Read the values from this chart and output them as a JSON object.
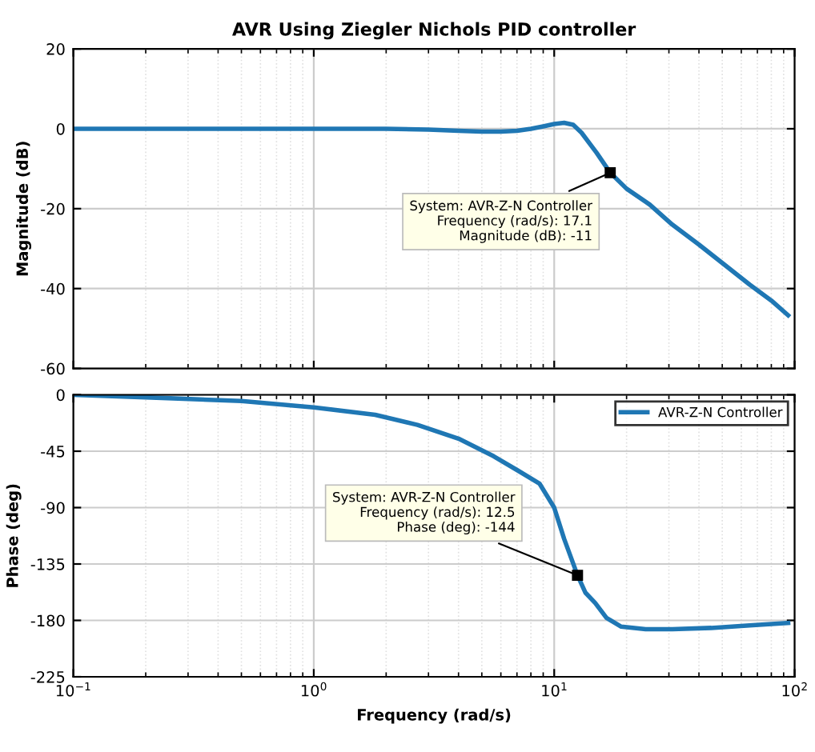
{
  "chart_data": [
    {
      "type": "line",
      "title": "AVR Using Ziegler Nichols PID controller",
      "ylabel": "Magnitude (dB)",
      "log": "x",
      "grid": true,
      "legend": false,
      "tick_labels": "y",
      "line_style": "solid",
      "marker": "none",
      "xlim": [
        0.1,
        100
      ],
      "xticks": [
        {
          "value": 0.1,
          "label": null
        },
        {
          "value": 1,
          "label": null
        },
        {
          "value": 10,
          "label": null
        },
        {
          "value": 100,
          "label": null
        }
      ],
      "ylim": [
        -60,
        20
      ],
      "yticks": [
        -60,
        -40,
        -20,
        0,
        20
      ],
      "series": [
        {
          "color": "#1f77b4",
          "x": [
            0.1,
            0.3,
            1,
            2,
            3,
            4,
            5,
            6,
            7,
            8,
            9,
            10,
            11,
            12,
            13,
            15,
            17.1,
            20,
            25,
            31,
            40,
            51,
            65,
            80,
            94
          ],
          "values": [
            0,
            0,
            0,
            0,
            -0.2,
            -0.5,
            -0.7,
            -0.7,
            -0.5,
            0,
            0.6,
            1.2,
            1.5,
            1,
            -1,
            -6,
            -11,
            -15,
            -19,
            -24,
            -29,
            -34,
            -39,
            -43,
            -46.7
          ]
        }
      ],
      "annotations": [
        {
          "text": "System: AVR-Z-N Controller\nFrequency (rad/s): 17.1\nMagnitude (dB): -11",
          "x": 17.1,
          "y": -11
        }
      ]
    },
    {
      "type": "line",
      "xlabel": "Frequency (rad/s)",
      "ylabel": "Phase (deg)",
      "log": "x",
      "grid": true,
      "legend": "top right",
      "line_style": "solid",
      "marker": "none",
      "xlim": [
        0.1,
        100
      ],
      "xticks": [
        {
          "value": 0.1,
          "label": "10$^{−1}$"
        },
        {
          "value": 1,
          "label": "10$^{0}$"
        },
        {
          "value": 10,
          "label": "10$^{1}$"
        },
        {
          "value": 100,
          "label": "10$^{2}$"
        }
      ],
      "ylim": [
        -225,
        0
      ],
      "yticks": [
        -225,
        -180,
        -135,
        -90,
        -45,
        0
      ],
      "series": [
        {
          "name": "AVR-Z-N Controller",
          "color": "#1f77b4",
          "x": [
            0.1,
            0.2,
            0.5,
            1,
            1.8,
            2.7,
            4,
            5.6,
            7,
            8.7,
            10,
            11,
            12.5,
            13.5,
            14.8,
            16.5,
            19,
            24,
            31,
            45,
            65,
            94
          ],
          "values": [
            0,
            -2,
            -5,
            -10,
            -16,
            -24,
            -35,
            -49,
            -60,
            -71,
            -90,
            -115,
            -144,
            -158,
            -166,
            -178,
            -185,
            -187,
            -187,
            -186,
            -184,
            -182
          ]
        }
      ],
      "annotations": [
        {
          "text": "System: AVR-Z-N Controller\nFrequency (rad/s): 12.5\nPhase (deg): -144",
          "x": 12.5,
          "y": -144
        }
      ]
    }
  ]
}
